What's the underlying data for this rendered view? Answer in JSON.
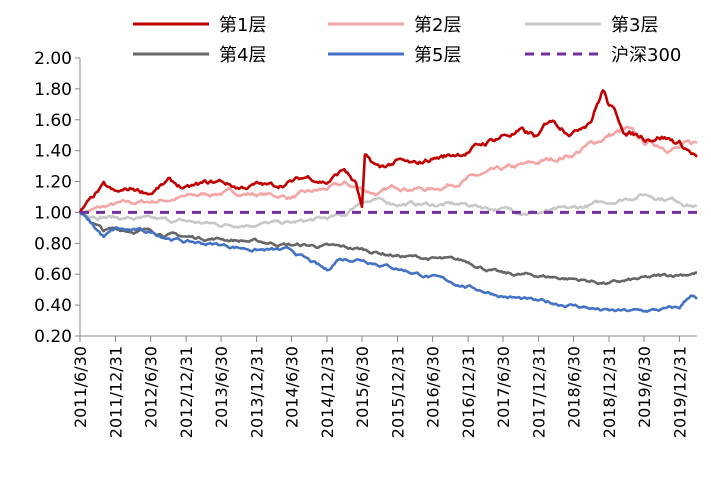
{
  "chart_data": {
    "type": "line",
    "title": "",
    "xlabel": "",
    "ylabel": "",
    "ylim": [
      0.2,
      2.0
    ],
    "yticks": [
      "0.20",
      "0.40",
      "0.60",
      "0.80",
      "1.00",
      "1.20",
      "1.40",
      "1.60",
      "1.80",
      "2.00"
    ],
    "x_tick_labels": [
      "2011/6/30",
      "2011/12/31",
      "2012/6/30",
      "2012/12/31",
      "2013/6/30",
      "2013/12/31",
      "2014/6/30",
      "2014/12/31",
      "2015/6/30",
      "2015/12/31",
      "2016/6/30",
      "2016/12/31",
      "2017/6/30",
      "2017/12/31",
      "2018/6/30",
      "2018/12/31",
      "2019/6/30",
      "2019/12/31"
    ],
    "x_range": [
      "2011/6/30",
      "2020/3/31"
    ],
    "grid": false,
    "legend_position": "top",
    "series": [
      {
        "name": "第1层",
        "color": "#c00000",
        "dashed": false,
        "x": [
          "2011/6/30",
          "2011/10/31",
          "2011/12/31",
          "2012/3/31",
          "2012/6/30",
          "2012/9/30",
          "2012/12/31",
          "2013/3/31",
          "2013/6/30",
          "2013/9/30",
          "2013/12/31",
          "2014/3/31",
          "2014/6/30",
          "2014/9/30",
          "2014/12/31",
          "2015/3/31",
          "2015/5/31",
          "2015/6/30",
          "2015/7/15",
          "2015/9/30",
          "2015/12/31",
          "2016/3/31",
          "2016/6/30",
          "2016/9/30",
          "2016/12/31",
          "2017/3/31",
          "2017/6/30",
          "2017/9/30",
          "2017/12/31",
          "2018/2/28",
          "2018/6/30",
          "2018/9/30",
          "2018/11/30",
          "2018/12/31",
          "2019/3/31",
          "2019/6/30",
          "2019/9/30",
          "2019/12/31",
          "2020/3/31"
        ],
        "values": [
          1.0,
          1.17,
          1.12,
          1.15,
          1.13,
          1.2,
          1.15,
          1.18,
          1.2,
          1.16,
          1.18,
          1.17,
          1.2,
          1.23,
          1.2,
          1.28,
          1.18,
          1.02,
          1.35,
          1.28,
          1.33,
          1.3,
          1.35,
          1.37,
          1.4,
          1.45,
          1.5,
          1.52,
          1.48,
          1.6,
          1.53,
          1.62,
          1.8,
          1.7,
          1.52,
          1.49,
          1.5,
          1.45,
          1.36
        ]
      },
      {
        "name": "第2层",
        "color": "#f4a6a6",
        "dashed": false,
        "x": [
          "2011/6/30",
          "2011/12/31",
          "2012/6/30",
          "2012/12/31",
          "2013/6/30",
          "2013/12/31",
          "2014/6/30",
          "2014/12/31",
          "2015/3/31",
          "2015/6/30",
          "2015/9/30",
          "2015/12/31",
          "2016/6/30",
          "2016/12/31",
          "2017/6/30",
          "2017/12/31",
          "2018/6/30",
          "2018/12/31",
          "2019/3/31",
          "2019/6/30",
          "2019/12/31",
          "2020/3/31"
        ],
        "values": [
          1.0,
          1.05,
          1.07,
          1.1,
          1.13,
          1.12,
          1.1,
          1.15,
          1.18,
          1.15,
          1.12,
          1.17,
          1.15,
          1.22,
          1.27,
          1.32,
          1.38,
          1.5,
          1.53,
          1.45,
          1.42,
          1.45
        ]
      },
      {
        "name": "第3层",
        "color": "#c8c8c8",
        "dashed": false,
        "x": [
          "2011/6/30",
          "2011/12/31",
          "2012/6/30",
          "2012/12/31",
          "2013/6/30",
          "2013/12/31",
          "2014/6/30",
          "2014/12/31",
          "2015/3/31",
          "2015/6/30",
          "2015/9/30",
          "2015/12/31",
          "2016/6/30",
          "2016/12/31",
          "2017/6/30",
          "2017/12/31",
          "2018/6/30",
          "2018/12/31",
          "2019/6/30",
          "2019/12/31",
          "2020/3/31"
        ],
        "values": [
          1.0,
          0.97,
          0.95,
          0.94,
          0.92,
          0.93,
          0.93,
          0.96,
          0.98,
          1.08,
          1.07,
          1.06,
          1.05,
          1.05,
          1.02,
          1.0,
          1.02,
          1.07,
          1.12,
          1.08,
          1.04
        ]
      },
      {
        "name": "第4层",
        "color": "#666666",
        "dashed": false,
        "x": [
          "2011/6/30",
          "2011/10/31",
          "2011/12/31",
          "2012/6/30",
          "2012/12/31",
          "2013/6/30",
          "2013/12/31",
          "2014/6/30",
          "2014/12/31",
          "2015/6/30",
          "2015/12/31",
          "2016/6/30",
          "2016/12/31",
          "2017/6/30",
          "2017/12/31",
          "2018/6/30",
          "2018/12/31",
          "2019/6/30",
          "2019/12/31",
          "2020/3/31"
        ],
        "values": [
          1.0,
          0.88,
          0.89,
          0.88,
          0.84,
          0.83,
          0.81,
          0.79,
          0.78,
          0.76,
          0.72,
          0.7,
          0.68,
          0.6,
          0.59,
          0.57,
          0.54,
          0.57,
          0.6,
          0.61
        ]
      },
      {
        "name": "第5层",
        "color": "#4472c4",
        "dashed": false,
        "x": [
          "2011/6/30",
          "2011/10/31",
          "2011/12/31",
          "2012/6/30",
          "2012/12/31",
          "2013/6/30",
          "2013/12/31",
          "2014/6/30",
          "2014/12/31",
          "2015/2/28",
          "2015/6/30",
          "2015/12/31",
          "2016/6/30",
          "2016/12/31",
          "2017/6/30",
          "2017/12/31",
          "2018/6/30",
          "2018/12/31",
          "2019/6/30",
          "2019/12/31",
          "2020/2/29",
          "2020/3/31"
        ],
        "values": [
          1.0,
          0.84,
          0.89,
          0.87,
          0.81,
          0.79,
          0.76,
          0.75,
          0.62,
          0.7,
          0.7,
          0.64,
          0.58,
          0.52,
          0.46,
          0.42,
          0.4,
          0.36,
          0.36,
          0.38,
          0.47,
          0.44
        ]
      },
      {
        "name": "沪深300",
        "color": "#7030a0",
        "dashed": true,
        "x": [
          "2011/6/30",
          "2020/3/31"
        ],
        "values": [
          1.0,
          1.0
        ]
      }
    ]
  }
}
